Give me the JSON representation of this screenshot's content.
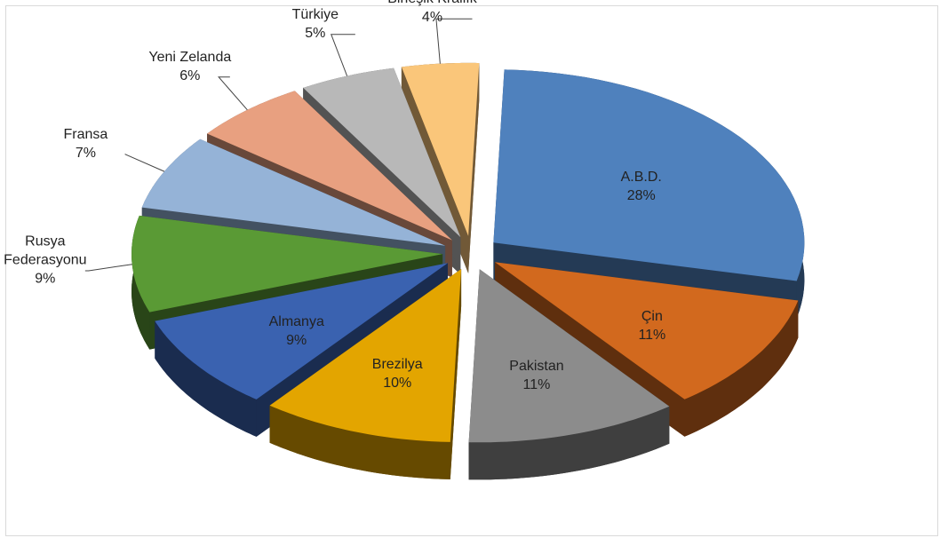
{
  "chart_data": {
    "type": "pie3d",
    "categories": [
      "A.B.D.",
      "Çin",
      "Pakistan",
      "Brezilya",
      "Almanya",
      "Rusya Federasyonu",
      "Fransa",
      "Yeni Zelanda",
      "Türkiye",
      "Birleşik Krallık"
    ],
    "values": [
      28,
      11,
      11,
      10,
      9,
      9,
      7,
      6,
      5,
      4
    ],
    "value_labels": [
      "28%",
      "11%",
      "11%",
      "10%",
      "9%",
      "9%",
      "7%",
      "6%",
      "5%",
      "4%"
    ],
    "colors": [
      "#4f81bd",
      "#d2691e",
      "#8c8c8c",
      "#e3a500",
      "#3a62b0",
      "#5a9a35",
      "#95b3d7",
      "#e8a080",
      "#b8b8b8",
      "#fac67a"
    ]
  }
}
